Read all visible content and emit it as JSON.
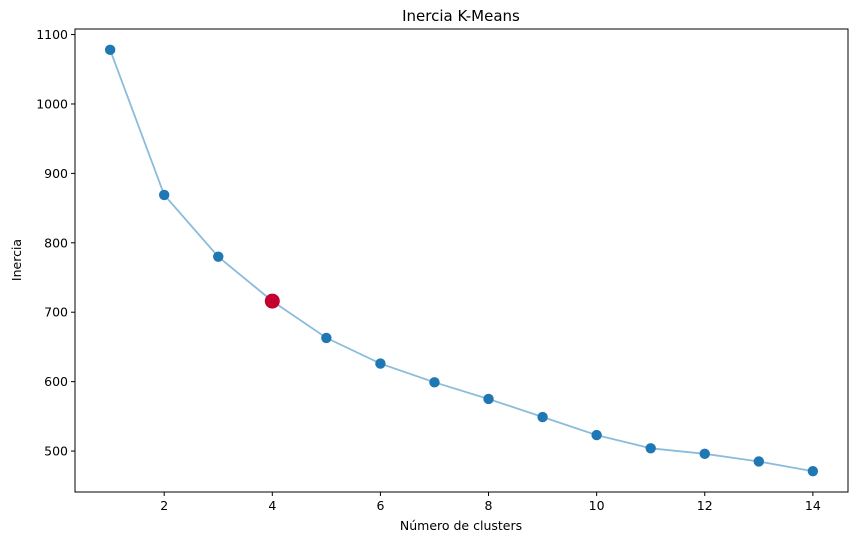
{
  "chart_data": {
    "type": "line",
    "title": "Inercia K-Means",
    "xlabel": "Número de clusters",
    "ylabel": "Inercia",
    "x": [
      1,
      2,
      3,
      4,
      5,
      6,
      7,
      8,
      9,
      10,
      11,
      12,
      13,
      14
    ],
    "series": [
      {
        "values": [
          1078,
          869,
          780,
          716,
          663,
          626,
          599,
          575,
          549,
          523,
          504,
          496,
          485,
          471
        ],
        "line_color": "#8cbcdc",
        "marker_color": "#1f77b4"
      }
    ],
    "highlight": {
      "x": 4,
      "y": 716,
      "color": "#c3002f"
    },
    "xlim": [
      0.35,
      14.65
    ],
    "ylim": [
      441,
      1108
    ],
    "xticks": [
      2,
      4,
      6,
      8,
      10,
      12,
      14
    ],
    "yticks": [
      500,
      600,
      700,
      800,
      900,
      1000,
      1100
    ],
    "grid": false,
    "legend": "none"
  }
}
